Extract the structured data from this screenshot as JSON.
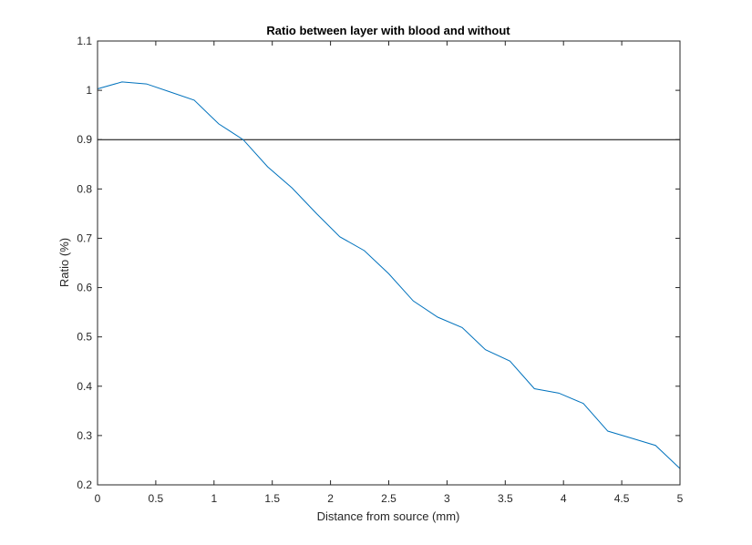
{
  "chart_data": {
    "type": "line",
    "title": "Ratio between layer with blood and without",
    "xlabel": "Distance from source (mm)",
    "ylabel": "Ratio (%)",
    "xlim": [
      0,
      5
    ],
    "ylim": [
      0.2,
      1.1
    ],
    "xticks": [
      0,
      0.5,
      1,
      1.5,
      2,
      2.5,
      3,
      3.5,
      4,
      4.5,
      5
    ],
    "yticks": [
      0.2,
      0.3,
      0.4,
      0.5,
      0.6,
      0.7,
      0.8,
      0.9,
      1,
      1.1
    ],
    "xtick_labels": [
      "0",
      "0.5",
      "1",
      "1.5",
      "2",
      "2.5",
      "3",
      "3.5",
      "4",
      "4.5",
      "5"
    ],
    "ytick_labels": [
      "0.2",
      "0.3",
      "0.4",
      "0.5",
      "0.6",
      "0.7",
      "0.8",
      "0.9",
      "1",
      "1.1"
    ],
    "grid": false,
    "series": [
      {
        "color": "#0072BD",
        "x": [
          0,
          0.21,
          0.42,
          0.62,
          0.83,
          1.04,
          1.25,
          1.46,
          1.67,
          1.88,
          2.08,
          2.29,
          2.5,
          2.71,
          2.92,
          3.13,
          3.33,
          3.54,
          3.75,
          3.96,
          4.17,
          4.38,
          4.58,
          4.79,
          5.0
        ],
        "y": [
          1.003,
          1.017,
          1.013,
          0.997,
          0.98,
          0.932,
          0.9,
          0.845,
          0.802,
          0.75,
          0.703,
          0.675,
          0.628,
          0.573,
          0.54,
          0.519,
          0.474,
          0.451,
          0.395,
          0.386,
          0.365,
          0.309,
          0.295,
          0.28,
          0.233
        ]
      }
    ],
    "reference_lines": [
      {
        "axis": "y",
        "value": 0.9,
        "color": "#000000"
      }
    ]
  }
}
